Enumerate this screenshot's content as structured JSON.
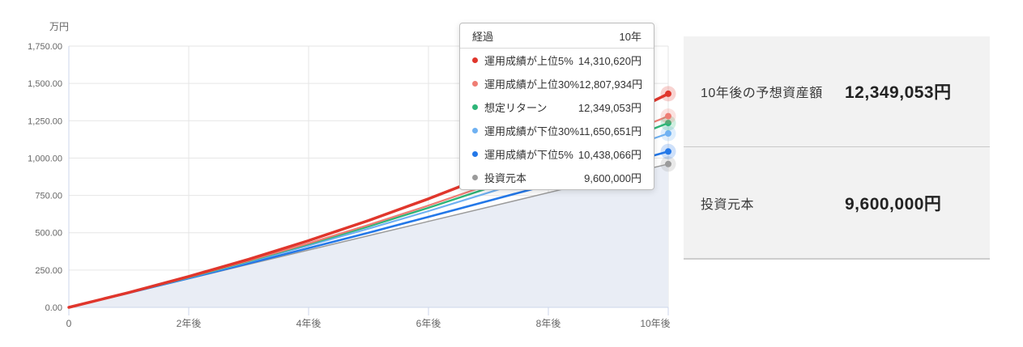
{
  "chart_data": {
    "type": "line",
    "title": "",
    "unit": "万円",
    "ylim": [
      0,
      1750
    ],
    "grid": true,
    "x_years": [
      0,
      1,
      2,
      3,
      4,
      5,
      6,
      7,
      8,
      9,
      10
    ],
    "y_ticks": [
      {
        "value": 1750,
        "label": "1,750.00"
      },
      {
        "value": 1500,
        "label": "1,500.00"
      },
      {
        "value": 1250,
        "label": "1,250.00"
      },
      {
        "value": 1000,
        "label": "1,000.00"
      },
      {
        "value": 750,
        "label": "750.00"
      },
      {
        "value": 500,
        "label": "500.00"
      },
      {
        "value": 250,
        "label": "250.00"
      },
      {
        "value": 0,
        "label": "0.00"
      }
    ],
    "x_ticks": [
      {
        "year": 0,
        "label": "0"
      },
      {
        "year": 2,
        "label": "2年後"
      },
      {
        "year": 4,
        "label": "4年後"
      },
      {
        "year": 6,
        "label": "6年後"
      },
      {
        "year": 8,
        "label": "8年後"
      },
      {
        "year": 10,
        "label": "10年後"
      }
    ],
    "colors": {
      "grid": "#e6e6e6",
      "axis_line": "#ccd6eb",
      "axis_label": "#666666"
    },
    "series": [
      {
        "id": "top5",
        "name": "運用成績が上位5%",
        "color": "#e0362c",
        "final_value_yen": 14310620,
        "final_label": "14,310,620円",
        "values_man_yen": [
          0,
          99,
          207,
          322,
          447,
          582,
          727,
          883,
          1052,
          1234,
          1431.1
        ]
      },
      {
        "id": "top30",
        "name": "運用成績が上位30%",
        "color": "#ef7d74",
        "final_value_yen": 12807934,
        "final_label": "12,807,934円",
        "values_man_yen": [
          0,
          99,
          203,
          313,
          429,
          552,
          682,
          820,
          965,
          1119,
          1280.8
        ]
      },
      {
        "id": "expected",
        "name": "想定リターン",
        "color": "#2eb578",
        "final_value_yen": 12349053,
        "final_label": "12,349,053円",
        "values_man_yen": [
          0,
          98,
          201,
          310,
          423,
          542,
          667,
          799,
          937,
          1081,
          1234.9
        ]
      },
      {
        "id": "bottom30",
        "name": "運用成績が下位30%",
        "color": "#6fb1f2",
        "final_value_yen": 11650651,
        "final_label": "11,650,651円",
        "values_man_yen": [
          0,
          98,
          199,
          305,
          414,
          527,
          645,
          768,
          895,
          1027,
          1165.1
        ]
      },
      {
        "id": "bottom5",
        "name": "運用成績が下位5%",
        "color": "#2478e8",
        "final_value_yen": 10438066,
        "final_label": "10,438,066円",
        "values_man_yen": [
          0,
          97,
          195,
          295,
          397,
          500,
          606,
          713,
          821,
          932,
          1043.8
        ]
      },
      {
        "id": "principal",
        "name": "投資元本",
        "color": "#9b9b9b",
        "final_value_yen": 9600000,
        "final_label": "9,600,000円",
        "area": true,
        "area_color": "#e9edf5",
        "values_man_yen": [
          0,
          96,
          192,
          288,
          384,
          480,
          576,
          672,
          768,
          864,
          960
        ]
      }
    ],
    "legend_position": "tooltip"
  },
  "tooltip": {
    "header_label": "経過",
    "header_value": "10年",
    "rows": [
      {
        "label": "運用成績が上位5%",
        "value": "14,310,620円",
        "color": "#e0362c"
      },
      {
        "label": "運用成績が上位30%",
        "value": "12,807,934円",
        "color": "#ef7d74"
      },
      {
        "label": "想定リターン",
        "value": "12,349,053円",
        "color": "#2eb578"
      },
      {
        "label": "運用成績が下位30%",
        "value": "11,650,651円",
        "color": "#6fb1f2"
      },
      {
        "label": "運用成績が下位5%",
        "value": "10,438,066円",
        "color": "#2478e8"
      },
      {
        "label": "投資元本",
        "value": "9,600,000円",
        "color": "#9b9b9b"
      }
    ]
  },
  "summary": {
    "rows": [
      {
        "label": "10年後の予想資産額",
        "value": "12,349,053円"
      },
      {
        "label": "投資元本",
        "value": "9,600,000円"
      }
    ]
  }
}
